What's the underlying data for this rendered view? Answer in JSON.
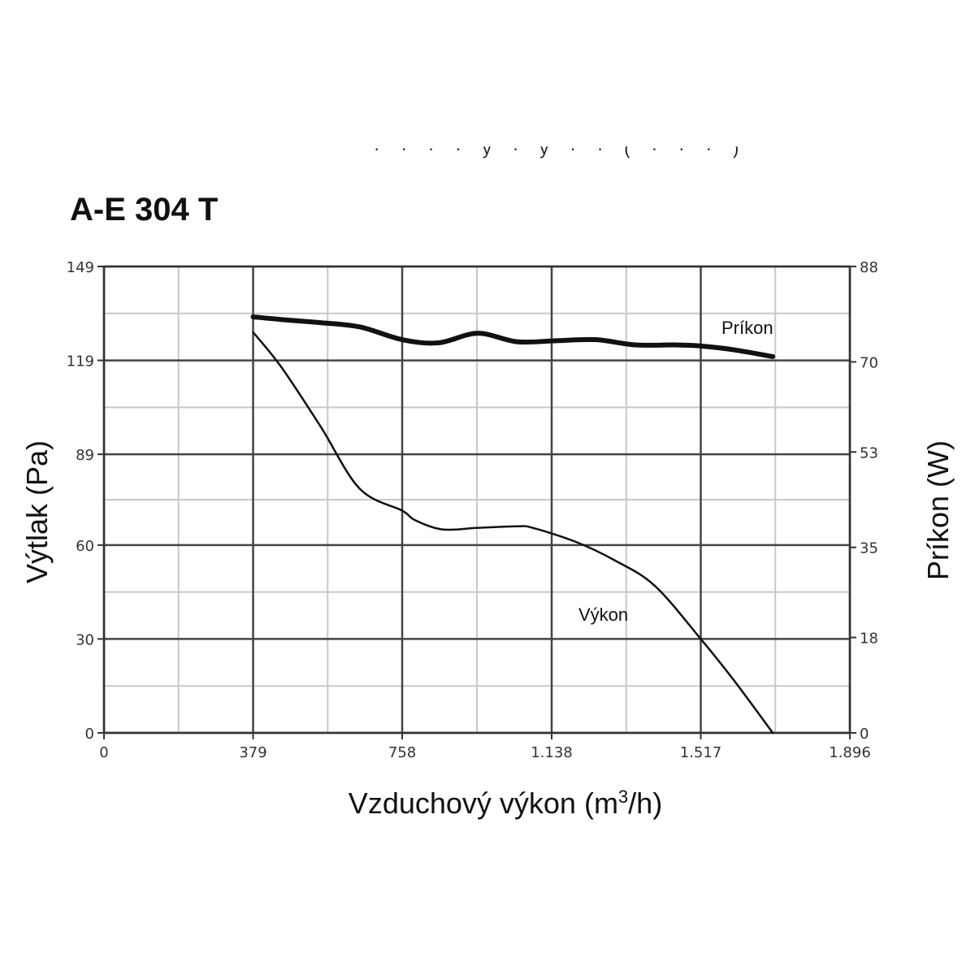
{
  "chart_data": {
    "type": "line",
    "title": "A-E 304 T",
    "header_fragment": "· · · · y · y · · ( · · · )",
    "xlabel": "Vzduchový výkon (m",
    "xlabel_sup": "3",
    "xlabel_end": "/h)",
    "ylabel": "Výtlak (Pa)",
    "ylabel_right": "Príkon (W)",
    "xlim": [
      0,
      1896
    ],
    "ylim": [
      0,
      149
    ],
    "ylim_right": [
      0,
      88
    ],
    "x_ticks": [
      {
        "value": 0,
        "label": "0"
      },
      {
        "value": 379,
        "label": "379"
      },
      {
        "value": 758,
        "label": "758"
      },
      {
        "value": 1138,
        "label": "1.138"
      },
      {
        "value": 1517,
        "label": "1.517"
      },
      {
        "value": 1896,
        "label": "1.896"
      }
    ],
    "y_ticks": [
      {
        "value": 0,
        "label": "0"
      },
      {
        "value": 30,
        "label": "30"
      },
      {
        "value": 60,
        "label": "60"
      },
      {
        "value": 89,
        "label": "89"
      },
      {
        "value": 119,
        "label": "119"
      },
      {
        "value": 149,
        "label": "149"
      }
    ],
    "y_ticks_right": [
      {
        "value": 0,
        "label": "0"
      },
      {
        "value": 18,
        "label": "18"
      },
      {
        "value": 35,
        "label": "35"
      },
      {
        "value": 53,
        "label": "53"
      },
      {
        "value": 70,
        "label": "70"
      },
      {
        "value": 88,
        "label": "88"
      }
    ],
    "grid": true,
    "series": [
      {
        "name": "Výkon",
        "axis": "left",
        "color": "#111111",
        "x": [
          379,
          450,
          550,
          650,
          758,
          790,
          860,
          950,
          1050,
          1090,
          1200,
          1300,
          1400,
          1517,
          1600,
          1700
        ],
        "values": [
          128,
          117,
          98,
          78,
          71,
          68,
          65,
          65.5,
          66,
          65.5,
          61,
          55,
          47,
          30,
          17,
          0
        ]
      },
      {
        "name": "Príkon",
        "axis": "right",
        "color": "#111111",
        "x": [
          379,
          450,
          550,
          650,
          758,
          850,
          950,
          1050,
          1150,
          1250,
          1350,
          1450,
          1517,
          1600,
          1700
        ],
        "values": [
          78.5,
          78,
          77.4,
          76.6,
          74.2,
          73.6,
          75.4,
          73.8,
          74,
          74.2,
          73.2,
          73.2,
          73,
          72.3,
          71
        ]
      }
    ]
  }
}
